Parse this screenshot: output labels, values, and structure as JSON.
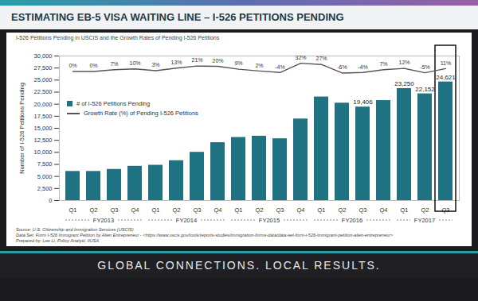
{
  "title": "ESTIMATING EB-5 VISA WAITING LINE – I-526 PETITIONS PENDING",
  "footer": "GLOBAL CONNECTIONS. LOCAL RESULTS.",
  "chart_data": {
    "type": "bar",
    "subtitle": "I-526 Petitions Pending in USCIS and the Growth Rates of Pending I-526 Petitions",
    "categories": [
      "Q1",
      "Q2",
      "Q3",
      "Q4",
      "Q1",
      "Q2",
      "Q3",
      "Q4",
      "Q1",
      "Q2",
      "Q3",
      "Q4",
      "Q1",
      "Q2",
      "Q3",
      "Q4",
      "Q1",
      "Q2",
      "Q3"
    ],
    "x_groups": [
      "FY2013",
      "FY2013",
      "FY2013",
      "FY2013",
      "FY2014",
      "FY2014",
      "FY2014",
      "FY2014",
      "FY2015",
      "FY2015",
      "FY2015",
      "FY2015",
      "FY2016",
      "FY2016",
      "FY2016",
      "FY2016",
      "FY2017",
      "FY2017",
      "FY2017"
    ],
    "ylabel": "Number of I-526 Petitions Pending",
    "ylim": [
      0,
      30000
    ],
    "yticks": [
      0,
      {
        "value": 2500,
        "label": "2,500"
      },
      {
        "value": 5000,
        "label": "5,000"
      },
      {
        "value": 7500,
        "label": "7,500"
      },
      {
        "value": 10000,
        "label": "10,000"
      },
      {
        "value": 12500,
        "label": "12,500"
      },
      {
        "value": 15000,
        "label": "15,000"
      },
      {
        "value": 17500,
        "label": "17,500"
      },
      {
        "value": 20000,
        "label": "20,000"
      },
      {
        "value": 22500,
        "label": "22,500"
      },
      {
        "value": 25000,
        "label": "25,000"
      },
      {
        "value": 27500,
        "label": "27,500"
      },
      {
        "value": 30000,
        "label": "30,000"
      }
    ],
    "y2lim": [
      -500,
      60
    ],
    "y2ticks": [],
    "grid": false,
    "legend": "upper left",
    "data_labels": true,
    "series": [
      {
        "name": "# of I-526 Petitions Pending",
        "type": "bar",
        "color": "#1f7282",
        "values": [
          6050,
          6050,
          6470,
          7120,
          7330,
          8280,
          10020,
          12020,
          13100,
          13360,
          12830,
          16930,
          21500,
          20220,
          19406,
          20760,
          23250,
          22152,
          24621
        ],
        "value_labels": [
          null,
          null,
          null,
          null,
          null,
          null,
          null,
          null,
          null,
          null,
          null,
          null,
          null,
          null,
          "19,406",
          null,
          "23,250",
          "22,152",
          "24,621"
        ]
      },
      {
        "name": "Growth Rate (%) of Pending I-526 Petitions",
        "type": "line",
        "axis": "y2",
        "color": "#555555",
        "values": [
          0,
          0,
          7,
          10,
          3,
          13,
          21,
          20,
          9,
          2,
          -4,
          32,
          27,
          -6,
          -4,
          7,
          12,
          -5,
          11
        ],
        "value_labels": [
          "0%",
          "0%",
          "7%",
          "10%",
          "3%",
          "13%",
          "21%",
          "20%",
          "9%",
          "2%",
          "-4%",
          "32%",
          "27%",
          "-6%",
          "-4%",
          "7%",
          "12%",
          "-5%",
          "11%"
        ]
      }
    ],
    "source": [
      "Source: U.S. Citizenship and Immigration Services (USCIS)",
      "Data Set: Form I-526 Immigrant Petition by Alien Entrepreneur - <https://www.uscis.gov/tools/reports-studies/immigration-forms-data/data-set-form-i-526-immigrant-petition-alien-entrepreneur>",
      "Prepared by: Lee Li, Policy Analyst, IIUSA"
    ]
  }
}
